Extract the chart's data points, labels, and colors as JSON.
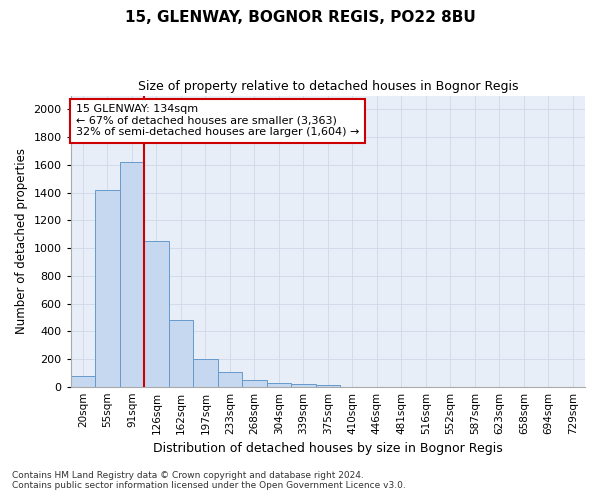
{
  "title_line1": "15, GLENWAY, BOGNOR REGIS, PO22 8BU",
  "title_line2": "Size of property relative to detached houses in Bognor Regis",
  "xlabel": "Distribution of detached houses by size in Bognor Regis",
  "ylabel": "Number of detached properties",
  "footnote1": "Contains HM Land Registry data © Crown copyright and database right 2024.",
  "footnote2": "Contains public sector information licensed under the Open Government Licence v3.0.",
  "categories": [
    "20sqm",
    "55sqm",
    "91sqm",
    "126sqm",
    "162sqm",
    "197sqm",
    "233sqm",
    "268sqm",
    "304sqm",
    "339sqm",
    "375sqm",
    "410sqm",
    "446sqm",
    "481sqm",
    "516sqm",
    "552sqm",
    "587sqm",
    "623sqm",
    "658sqm",
    "694sqm",
    "729sqm"
  ],
  "values": [
    75,
    1420,
    1620,
    1050,
    480,
    200,
    105,
    45,
    25,
    20,
    10,
    0,
    0,
    0,
    0,
    0,
    0,
    0,
    0,
    0,
    0
  ],
  "bar_color": "#c5d8f0",
  "bar_edge_color": "#6699cc",
  "grid_color": "#d0d8e8",
  "vline_color": "#cc0000",
  "annotation_text": "15 GLENWAY: 134sqm\n← 67% of detached houses are smaller (3,363)\n32% of semi-detached houses are larger (1,604) →",
  "annotation_box_facecolor": "#ffffff",
  "annotation_border_color": "#cc0000",
  "ylim": [
    0,
    2100
  ],
  "yticks": [
    0,
    200,
    400,
    600,
    800,
    1000,
    1200,
    1400,
    1600,
    1800,
    2000
  ],
  "background_color": "#e8eef8"
}
